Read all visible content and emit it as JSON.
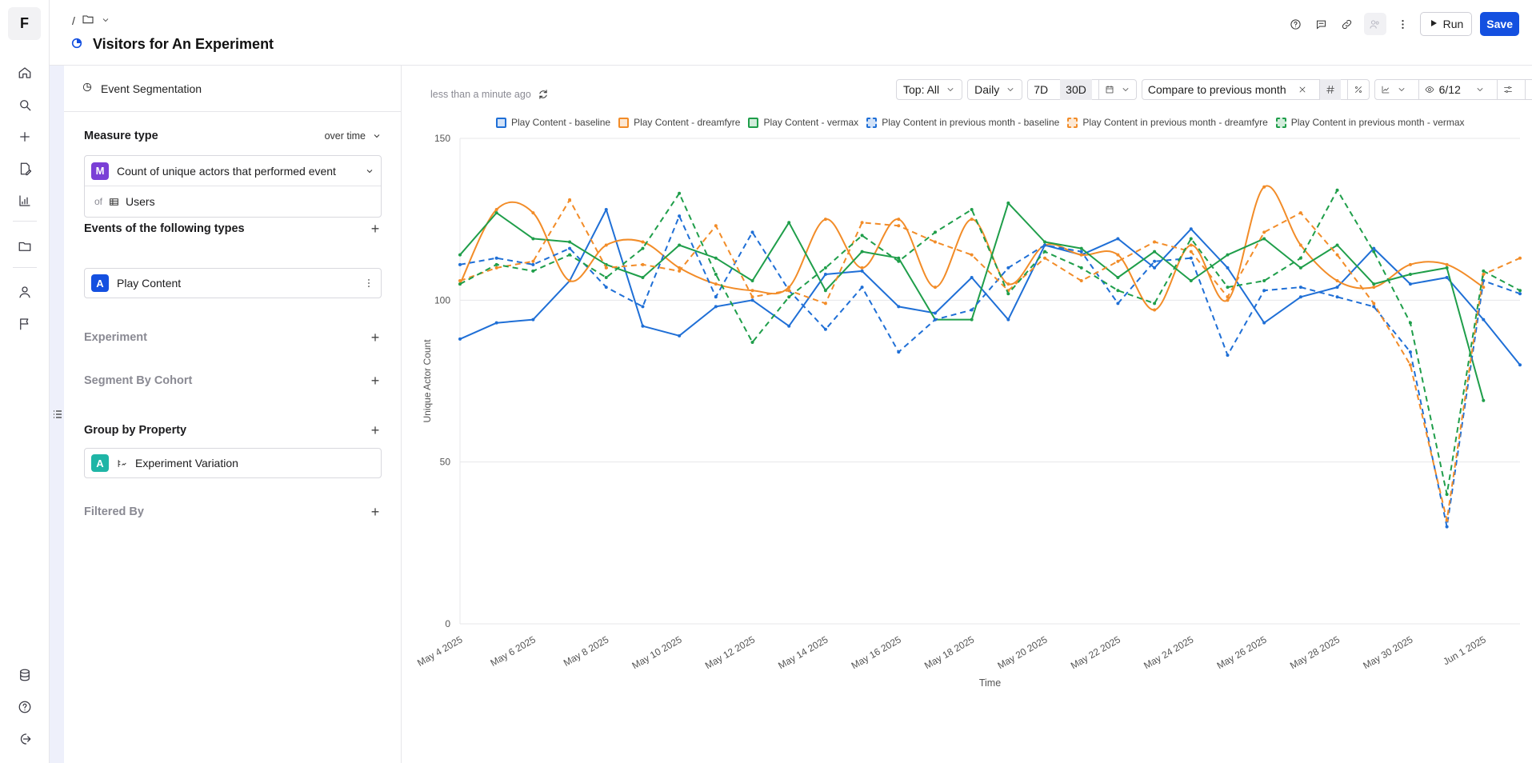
{
  "app": {
    "logo_letter": "F"
  },
  "header": {
    "breadcrumb_sep": "/",
    "title": "Visitors for An Experiment",
    "run_label": "Run",
    "save_label": "Save"
  },
  "panel": {
    "header_label": "Event Segmentation",
    "measure_type_label": "Measure type",
    "measure_mode": "over time",
    "measure_badge": "M",
    "measure_value": "Count of unique actors that performed event",
    "of_label": "of",
    "of_value": "Users",
    "events_label": "Events of the following types",
    "event_badge": "A",
    "event_value": "Play Content",
    "experiment_label": "Experiment",
    "segment_label": "Segment By Cohort",
    "group_label": "Group by Property",
    "group_badge": "A",
    "group_value": "Experiment Variation",
    "filtered_label": "Filtered By"
  },
  "chart_toolbar": {
    "updated": "less than a minute ago",
    "top": "Top: All",
    "interval": "Daily",
    "range_7d": "7D",
    "range_30d": "30D",
    "compare": "Compare to previous month",
    "visible_count": "6/12"
  },
  "colors": {
    "baseline": "#1f6fd6",
    "dreamfyre": "#f28c28",
    "vermax": "#1f9e4a",
    "accent": "#1450e0",
    "grid": "#e7e7ea"
  },
  "chart_data": {
    "type": "line",
    "xlabel": "Time",
    "ylabel": "Unique Actor Count",
    "ylim": [
      0,
      150
    ],
    "yticks": [
      0,
      50,
      100,
      150
    ],
    "x_tick_labels": [
      "May 4 2025",
      "May 6 2025",
      "May 8 2025",
      "May 10 2025",
      "May 12 2025",
      "May 14 2025",
      "May 16 2025",
      "May 18 2025",
      "May 20 2025",
      "May 22 2025",
      "May 24 2025",
      "May 26 2025",
      "May 28 2025",
      "May 30 2025",
      "Jun 1 2025"
    ],
    "x": [
      "May 4",
      "May 5",
      "May 6",
      "May 7",
      "May 8",
      "May 9",
      "May 10",
      "May 11",
      "May 12",
      "May 13",
      "May 14",
      "May 15",
      "May 16",
      "May 17",
      "May 18",
      "May 19",
      "May 20",
      "May 21",
      "May 22",
      "May 23",
      "May 24",
      "May 25",
      "May 26",
      "May 27",
      "May 28",
      "May 29",
      "May 30",
      "May 31",
      "Jun 1",
      "Jun 2"
    ],
    "series": [
      {
        "name": "Play Content - baseline",
        "color": "#1f6fd6",
        "dashed": false,
        "values": [
          88,
          93,
          94,
          106,
          128,
          92,
          89,
          98,
          100,
          92,
          108,
          109,
          98,
          96,
          107,
          94,
          117,
          114,
          119,
          110,
          122,
          110,
          93,
          101,
          104,
          116,
          105,
          107,
          94,
          80
        ]
      },
      {
        "name": "Play Content - dreamfyre",
        "color": "#f28c28",
        "dashed": false,
        "values": [
          105,
          128,
          127,
          106,
          117,
          118,
          110,
          105,
          103,
          104,
          125,
          110,
          125,
          104,
          125,
          105,
          117,
          114,
          114,
          97,
          117,
          100,
          135,
          117,
          106,
          104,
          111,
          111,
          104,
          null
        ]
      },
      {
        "name": "Play Content - vermax",
        "color": "#1f9e4a",
        "dashed": false,
        "values": [
          114,
          127,
          119,
          118,
          111,
          107,
          117,
          113,
          106,
          124,
          103,
          115,
          113,
          94,
          94,
          130,
          118,
          116,
          107,
          115,
          106,
          114,
          119,
          110,
          117,
          105,
          108,
          110,
          69,
          null
        ]
      },
      {
        "name": "Play Content in previous month - baseline",
        "color": "#1f6fd6",
        "dashed": true,
        "values": [
          111,
          113,
          111,
          116,
          104,
          98,
          126,
          101,
          121,
          103,
          91,
          104,
          84,
          94,
          97,
          110,
          117,
          115,
          99,
          112,
          113,
          83,
          103,
          104,
          101,
          98,
          84,
          30,
          106,
          102
        ]
      },
      {
        "name": "Play Content in previous month - dreamfyre",
        "color": "#f28c28",
        "dashed": true,
        "values": [
          106,
          110,
          112,
          131,
          110,
          111,
          109,
          123,
          101,
          103,
          99,
          124,
          123,
          118,
          114,
          103,
          113,
          106,
          112,
          118,
          115,
          101,
          121,
          127,
          114,
          99,
          80,
          32,
          108,
          113
        ]
      },
      {
        "name": "Play Content in previous month - vermax",
        "color": "#1f9e4a",
        "dashed": true,
        "values": [
          105,
          111,
          109,
          114,
          107,
          116,
          133,
          108,
          87,
          101,
          110,
          120,
          112,
          121,
          128,
          102,
          115,
          110,
          103,
          99,
          119,
          104,
          106,
          113,
          134,
          115,
          93,
          40,
          109,
          103
        ]
      }
    ]
  }
}
